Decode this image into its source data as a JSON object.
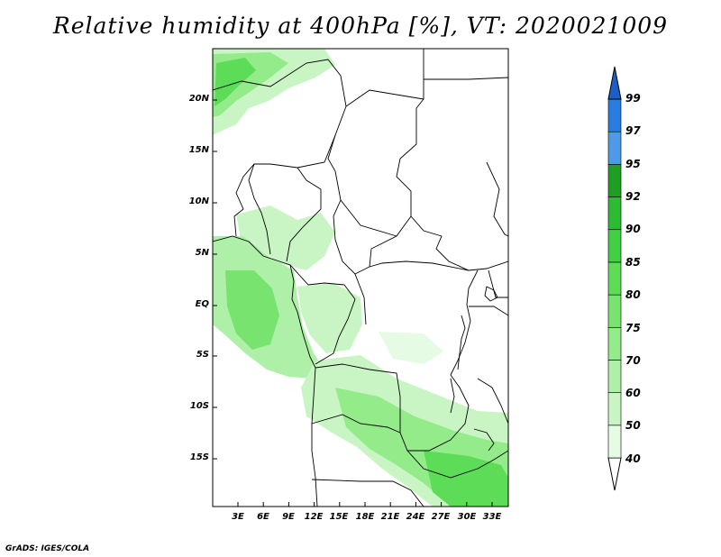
{
  "title": "Relative humidity at 400hPa [%], VT: 2020021009",
  "map": {
    "lat_labels": [
      "20N",
      "15N",
      "10N",
      "5N",
      "EQ",
      "5S",
      "10S",
      "15S"
    ],
    "lon_labels": [
      "3E",
      "6E",
      "9E",
      "12E",
      "15E",
      "18E",
      "21E",
      "24E",
      "27E",
      "30E",
      "33E"
    ],
    "variable": "relative humidity",
    "level": "400hPa",
    "units": "%"
  },
  "colorbar": {
    "labels": [
      "40",
      "50",
      "60",
      "70",
      "75",
      "80",
      "85",
      "90",
      "92",
      "95",
      "97",
      "99"
    ],
    "colors": [
      "#e6fbe4",
      "#c9f5c4",
      "#aef0a7",
      "#93eb8a",
      "#78e46f",
      "#5ddc57",
      "#43cf45",
      "#2fba33",
      "#1e9e22",
      "#4f9ae6",
      "#2a7de0",
      "#1b5fc8"
    ]
  },
  "credit": "GrADS: IGES/COLA"
}
